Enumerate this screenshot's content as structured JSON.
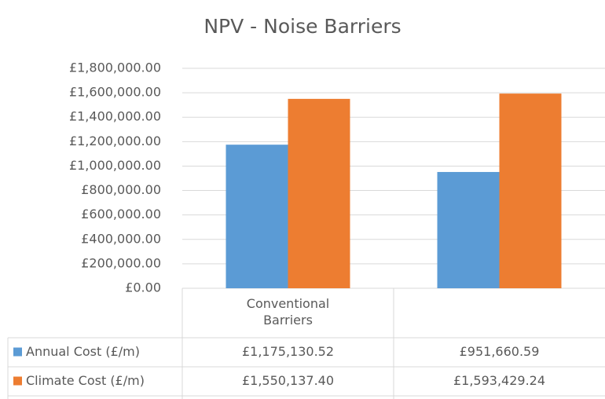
{
  "chart_data": {
    "type": "bar",
    "title": "NPV - Noise Barriers",
    "categories": [
      "Conventional Barriers",
      null
    ],
    "series": [
      {
        "name": "Annual Cost (£/m)",
        "color": "#5b9bd5",
        "values": [
          1175130.52,
          951660.59
        ],
        "value_labels": [
          "£1,175,130.52",
          "£951,660.59"
        ]
      },
      {
        "name": "Climate Cost (£/m)",
        "color": "#ed7d31",
        "values": [
          1550137.4,
          1593429.24
        ],
        "value_labels": [
          "£1,550,137.40",
          "£1,593,429.24"
        ]
      }
    ],
    "ylim": [
      0,
      1800000
    ],
    "yticks": [
      {
        "value": 0,
        "label": "£0.00"
      },
      {
        "value": 200000,
        "label": "£200,000.00"
      },
      {
        "value": 400000,
        "label": "£400,000.00"
      },
      {
        "value": 600000,
        "label": "£600,000.00"
      },
      {
        "value": 800000,
        "label": "£800,000.00"
      },
      {
        "value": 1000000,
        "label": "£1,000,000.00"
      },
      {
        "value": 1200000,
        "label": "£1,200,000.00"
      },
      {
        "value": 1400000,
        "label": "£1,400,000.00"
      },
      {
        "value": 1600000,
        "label": "£1,600,000.00"
      },
      {
        "value": 1800000,
        "label": "£1,800,000.00"
      }
    ],
    "grid": true,
    "data_table": true
  }
}
